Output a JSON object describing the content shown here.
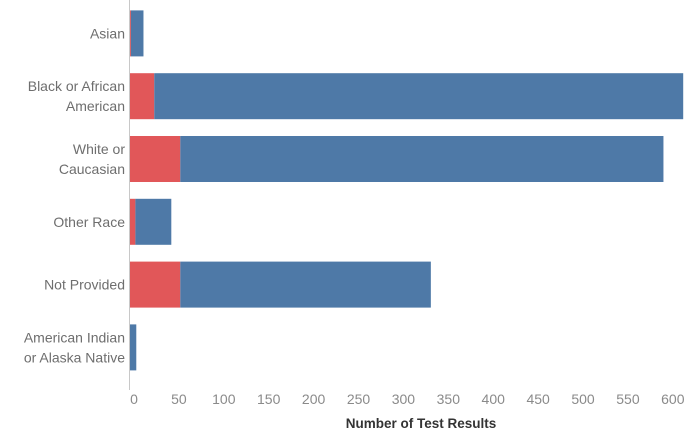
{
  "chart_data": {
    "type": "bar",
    "orientation": "horizontal",
    "stacked": true,
    "categories": [
      [
        "Asian"
      ],
      [
        "Black or African",
        "American"
      ],
      [
        "White or",
        "Caucasian"
      ],
      [
        "Other Race"
      ],
      [
        "Not Provided"
      ],
      [
        "American Indian",
        "or Alaska Native"
      ]
    ],
    "series": [
      {
        "color": "#e15759",
        "values": [
          1,
          27,
          56,
          6,
          56,
          0
        ]
      },
      {
        "color": "#4e79a7",
        "values": [
          14,
          589,
          538,
          40,
          279,
          7
        ]
      }
    ],
    "xlabel": "Number of Test Results",
    "ticks": [
      0,
      50,
      100,
      150,
      200,
      250,
      300,
      350,
      400,
      450,
      500,
      550,
      600
    ],
    "xlim": [
      0,
      618
    ],
    "grid": false,
    "legend": "none"
  }
}
